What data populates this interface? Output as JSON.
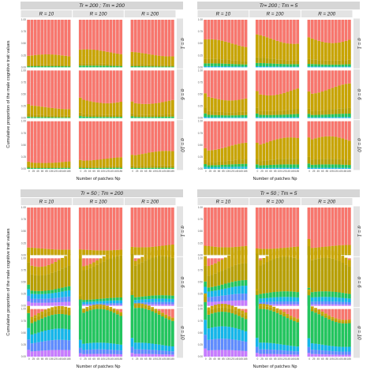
{
  "chart_data": {
    "type": "bar",
    "stacked": true,
    "ylabel": "Cumulative proportion of the male cognitive trait values",
    "xlabel": "Number of patches Np",
    "x": [
      0,
      10,
      25,
      40,
      55,
      70,
      85,
      100,
      115,
      130,
      145,
      160,
      175
    ],
    "x_tick_labels": [
      "0",
      "25",
      "45",
      "65",
      "85",
      "105",
      "125",
      "145",
      "165",
      "185"
    ],
    "y_tick_labels": [
      "0.00",
      "0.25",
      "0.50",
      "0.75",
      "1.00"
    ],
    "ylim": [
      0,
      1
    ],
    "grid": true,
    "column_labels": [
      "R = 10",
      "R = 100",
      "R = 200"
    ],
    "row_labels": [
      "α = 1",
      "α = 6",
      "α = 10"
    ],
    "colors": [
      "#00bfc4",
      "#f8766d",
      "#c77cff",
      "#f564e3",
      "#619cff",
      "#00b9e3",
      "#00ba38",
      "#7cae00",
      "#b79f00",
      "#cd9600",
      "#de8c00"
    ],
    "series_color_order": [
      "cyan",
      "violet",
      "blue",
      "light-blue",
      "green",
      "olive",
      "salmon"
    ],
    "panels": [
      {
        "title": "Tr = 200 ; Tm = 200",
        "cells": [
          [
            {
              "heights": [
                0,
                0,
                0,
                0,
                0.02,
                0.03,
                0.18
              ]
            },
            {
              "heights": [
                0,
                0,
                0,
                0,
                0.03,
                0.04,
                0.25
              ]
            },
            {
              "heights": [
                0,
                0,
                0,
                0,
                0.02,
                0.04,
                0.22
              ]
            }
          ],
          [
            {
              "heights": [
                0,
                0,
                0,
                0,
                0.02,
                0.04,
                0.17
              ]
            },
            {
              "heights": [
                0,
                0,
                0,
                0,
                0.03,
                0.05,
                0.3
              ]
            },
            {
              "heights": [
                0,
                0,
                0,
                0,
                0.03,
                0.05,
                0.28
              ]
            }
          ],
          [
            {
              "heights": [
                0,
                0,
                0,
                0,
                0.02,
                0.03,
                0.1
              ]
            },
            {
              "heights": [
                0,
                0,
                0,
                0,
                0.02,
                0.03,
                0.16
              ]
            },
            {
              "heights": [
                0,
                0,
                0,
                0,
                0.02,
                0.04,
                0.26
              ]
            }
          ]
        ]
      },
      {
        "title": "Tr= 200 ; Tm = 5",
        "cells": [
          [
            {
              "heights": [
                0,
                0,
                0,
                0.02,
                0.05,
                0.08,
                0.35
              ]
            },
            {
              "heights": [
                0,
                0,
                0,
                0.02,
                0.06,
                0.1,
                0.42
              ]
            },
            {
              "heights": [
                0,
                0,
                0,
                0.02,
                0.05,
                0.1,
                0.45
              ]
            }
          ],
          [
            {
              "heights": [
                0,
                0,
                0,
                0.02,
                0.05,
                0.08,
                0.3
              ]
            },
            {
              "heights": [
                0,
                0,
                0,
                0.02,
                0.06,
                0.1,
                0.4
              ]
            },
            {
              "heights": [
                0,
                0,
                0,
                0.02,
                0.06,
                0.1,
                0.44
              ]
            }
          ],
          [
            {
              "heights": [
                0.02,
                0,
                0,
                0.02,
                0.05,
                0.08,
                0.3
              ]
            },
            {
              "heights": [
                0,
                0,
                0,
                0.02,
                0.06,
                0.1,
                0.38
              ]
            },
            {
              "heights": [
                0,
                0,
                0,
                0.02,
                0.06,
                0.1,
                0.4
              ]
            }
          ]
        ]
      },
      {
        "title": "Tr = 50 ; Tm = 200",
        "cells": [
          [
            {
              "heights": [
                0,
                0,
                0,
                0,
                0,
                0.02,
                0.12
              ]
            },
            {
              "heights": [
                0,
                0,
                0,
                0,
                0,
                0.02,
                0.1
              ]
            },
            {
              "heights": [
                0,
                0,
                0,
                0,
                0,
                0.02,
                0.18
              ]
            }
          ],
          [
            {
              "heights": [
                0,
                0.08,
                0.1,
                0.12,
                0.08,
                0.4,
                0.22
              ]
            },
            {
              "heights": [
                0,
                0.02,
                0.03,
                0.05,
                0.05,
                0.75,
                0.1
              ]
            },
            {
              "heights": [
                0,
                0.03,
                0.04,
                0.06,
                0.06,
                0.7,
                0.11
              ]
            }
          ],
          [
            {
              "heights": [
                0,
                0.12,
                0.18,
                0.2,
                0.26,
                0.08,
                0.06
              ]
            },
            {
              "heights": [
                0,
                0.05,
                0.08,
                0.12,
                0.6,
                0.05,
                0.03
              ]
            },
            {
              "heights": [
                0,
                0.05,
                0.08,
                0.12,
                0.62,
                0.05,
                0.03
              ]
            }
          ]
        ]
      },
      {
        "title": "Tr = 50 ; Tm = 5",
        "cells": [
          [
            {
              "heights": [
                0,
                0,
                0,
                0,
                0,
                0.02,
                0.18
              ]
            },
            {
              "heights": [
                0,
                0,
                0,
                0,
                0,
                0.02,
                0.14
              ]
            },
            {
              "heights": [
                0,
                0,
                0,
                0,
                0,
                0.02,
                0.16
              ]
            }
          ],
          [
            {
              "heights": [
                0,
                0.1,
                0.12,
                0.14,
                0.1,
                0.3,
                0.24
              ]
            },
            {
              "heights": [
                0,
                0.03,
                0.05,
                0.08,
                0.1,
                0.62,
                0.12
              ]
            },
            {
              "heights": [
                0,
                0.03,
                0.05,
                0.08,
                0.1,
                0.6,
                0.14
              ]
            }
          ],
          [
            {
              "heights": [
                0,
                0.12,
                0.2,
                0.22,
                0.26,
                0.08,
                0.06
              ]
            },
            {
              "heights": [
                0,
                0.05,
                0.08,
                0.12,
                0.6,
                0.05,
                0.04
              ]
            },
            {
              "heights": [
                0,
                0.05,
                0.08,
                0.12,
                0.6,
                0.05,
                0.04
              ]
            }
          ]
        ]
      }
    ]
  }
}
